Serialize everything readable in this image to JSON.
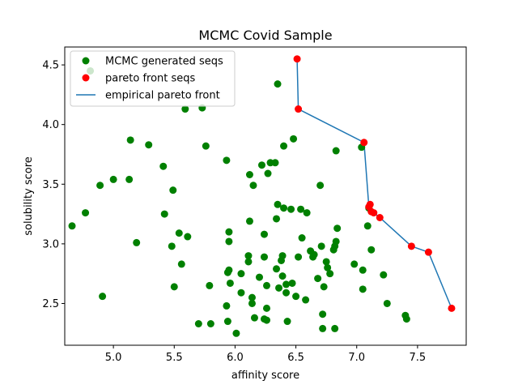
{
  "chart_data": {
    "type": "scatter",
    "title": "MCMC Covid Sample",
    "xlabel": "affinity score",
    "ylabel": "solubility score",
    "xlim": [
      4.6,
      7.9
    ],
    "ylim": [
      2.15,
      4.65
    ],
    "xticks": [
      "5.0",
      "5.5",
      "6.0",
      "6.5",
      "7.0",
      "7.5"
    ],
    "xtick_values": [
      5.0,
      5.5,
      6.0,
      6.5,
      7.0,
      7.5
    ],
    "yticks": [
      "2.5",
      "3.0",
      "3.5",
      "4.0",
      "4.5"
    ],
    "ytick_values": [
      2.5,
      3.0,
      3.5,
      4.0,
      4.5
    ],
    "legend_position": "top-left",
    "series": [
      {
        "name": "MCMC generated seqs",
        "kind": "scatter",
        "color": "#008000",
        "points": [
          [
            4.81,
            4.45
          ],
          [
            4.66,
            3.15
          ],
          [
            4.77,
            3.26
          ],
          [
            4.89,
            3.49
          ],
          [
            4.91,
            2.56
          ],
          [
            5.0,
            3.54
          ],
          [
            5.13,
            3.54
          ],
          [
            5.14,
            3.87
          ],
          [
            5.19,
            3.01
          ],
          [
            5.29,
            3.83
          ],
          [
            5.41,
            3.65
          ],
          [
            5.42,
            3.25
          ],
          [
            5.48,
            2.98
          ],
          [
            5.49,
            3.45
          ],
          [
            5.5,
            2.64
          ],
          [
            5.54,
            3.09
          ],
          [
            5.56,
            2.83
          ],
          [
            5.59,
            4.13
          ],
          [
            5.61,
            3.06
          ],
          [
            5.7,
            2.33
          ],
          [
            5.73,
            4.14
          ],
          [
            5.76,
            3.82
          ],
          [
            5.79,
            2.65
          ],
          [
            5.8,
            2.33
          ],
          [
            5.93,
            3.7
          ],
          [
            5.93,
            2.48
          ],
          [
            5.94,
            2.35
          ],
          [
            5.94,
            2.76
          ],
          [
            5.95,
            2.78
          ],
          [
            5.95,
            3.1
          ],
          [
            5.95,
            3.02
          ],
          [
            5.96,
            2.67
          ],
          [
            6.01,
            2.25
          ],
          [
            6.05,
            2.75
          ],
          [
            6.05,
            2.59
          ],
          [
            6.11,
            2.9
          ],
          [
            6.11,
            2.85
          ],
          [
            6.12,
            3.19
          ],
          [
            6.12,
            3.58
          ],
          [
            6.14,
            2.55
          ],
          [
            6.14,
            2.5
          ],
          [
            6.15,
            3.49
          ],
          [
            6.16,
            2.38
          ],
          [
            6.2,
            2.72
          ],
          [
            6.22,
            3.66
          ],
          [
            6.24,
            3.08
          ],
          [
            6.24,
            2.89
          ],
          [
            6.24,
            2.37
          ],
          [
            6.26,
            2.36
          ],
          [
            6.26,
            2.65
          ],
          [
            6.26,
            2.46
          ],
          [
            6.27,
            3.59
          ],
          [
            6.29,
            3.68
          ],
          [
            6.33,
            3.68
          ],
          [
            6.34,
            2.79
          ],
          [
            6.34,
            3.21
          ],
          [
            6.35,
            4.34
          ],
          [
            6.35,
            3.33
          ],
          [
            6.36,
            2.63
          ],
          [
            6.38,
            2.86
          ],
          [
            6.39,
            2.9
          ],
          [
            6.39,
            2.73
          ],
          [
            6.4,
            3.82
          ],
          [
            6.4,
            3.3
          ],
          [
            6.42,
            2.66
          ],
          [
            6.42,
            2.59
          ],
          [
            6.43,
            2.35
          ],
          [
            6.46,
            3.29
          ],
          [
            6.47,
            2.67
          ],
          [
            6.48,
            3.88
          ],
          [
            6.5,
            2.56
          ],
          [
            6.52,
            2.89
          ],
          [
            6.54,
            3.29
          ],
          [
            6.55,
            3.05
          ],
          [
            6.58,
            2.53
          ],
          [
            6.59,
            3.26
          ],
          [
            6.62,
            2.94
          ],
          [
            6.64,
            2.89
          ],
          [
            6.65,
            2.91
          ],
          [
            6.68,
            2.71
          ],
          [
            6.7,
            3.49
          ],
          [
            6.71,
            2.98
          ],
          [
            6.72,
            2.41
          ],
          [
            6.72,
            2.29
          ],
          [
            6.73,
            2.64
          ],
          [
            6.75,
            2.85
          ],
          [
            6.76,
            2.8
          ],
          [
            6.78,
            2.75
          ],
          [
            6.81,
            2.95
          ],
          [
            6.82,
            2.98
          ],
          [
            6.82,
            2.29
          ],
          [
            6.83,
            3.78
          ],
          [
            6.83,
            3.02
          ],
          [
            6.84,
            3.13
          ],
          [
            6.98,
            2.83
          ],
          [
            7.04,
            3.81
          ],
          [
            7.05,
            2.78
          ],
          [
            7.05,
            2.62
          ],
          [
            7.09,
            3.15
          ],
          [
            7.1,
            3.3
          ],
          [
            7.12,
            2.95
          ],
          [
            7.22,
            2.74
          ],
          [
            7.25,
            2.5
          ],
          [
            7.4,
            2.4
          ],
          [
            7.41,
            2.37
          ]
        ]
      },
      {
        "name": "pareto front seqs",
        "kind": "scatter",
        "color": "#ff0000",
        "points": [
          [
            6.51,
            4.55
          ],
          [
            6.52,
            4.13
          ],
          [
            7.06,
            3.85
          ],
          [
            7.1,
            3.31
          ],
          [
            7.11,
            3.33
          ],
          [
            7.12,
            3.27
          ],
          [
            7.14,
            3.26
          ],
          [
            7.19,
            3.22
          ],
          [
            7.45,
            2.98
          ],
          [
            7.59,
            2.93
          ],
          [
            7.78,
            2.46
          ]
        ]
      },
      {
        "name": "empirical pareto front",
        "kind": "line",
        "color": "#1f77b4",
        "points": [
          [
            6.51,
            4.55
          ],
          [
            6.52,
            4.13
          ],
          [
            7.06,
            3.85
          ],
          [
            7.1,
            3.31
          ],
          [
            7.11,
            3.33
          ],
          [
            7.12,
            3.27
          ],
          [
            7.14,
            3.26
          ],
          [
            7.19,
            3.22
          ],
          [
            7.45,
            2.98
          ],
          [
            7.59,
            2.93
          ],
          [
            7.78,
            2.46
          ]
        ]
      }
    ]
  }
}
